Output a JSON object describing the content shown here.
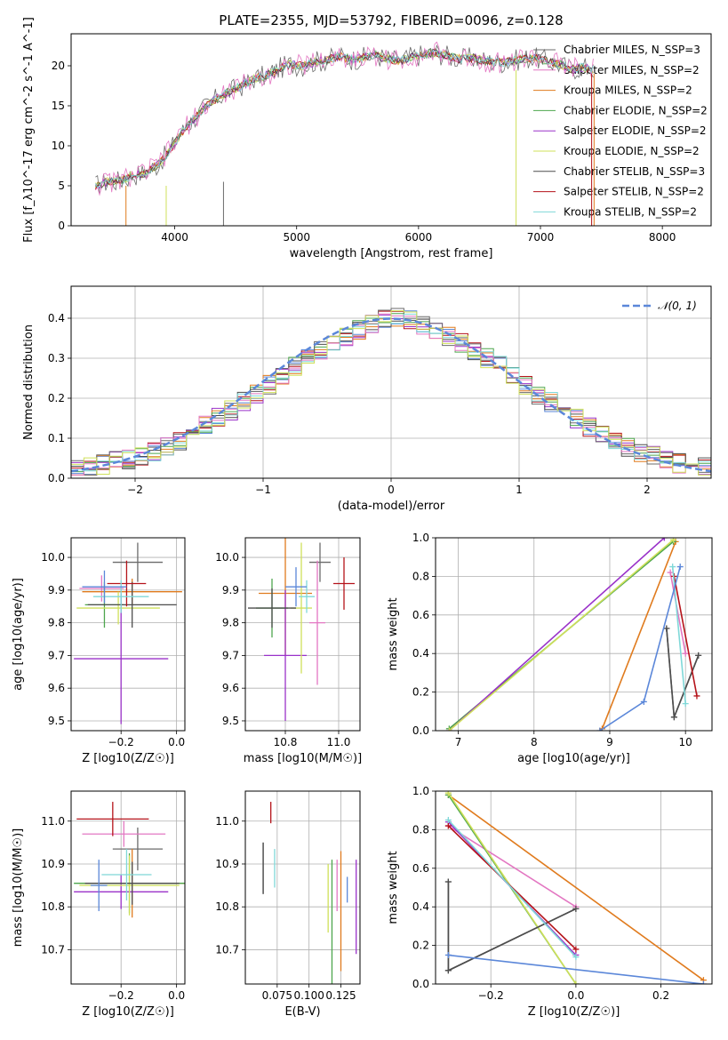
{
  "title": "PLATE=2355, MJD=53792, FIBERID=0096, z=0.128",
  "colors": [
    "#6b6b6b",
    "#e377c2",
    "#e07b1e",
    "#4da64d",
    "#9a32c9",
    "#cfe05a",
    "#4d4d4d",
    "#b5131a",
    "#7fd8d8",
    "#5b87d9"
  ],
  "chart_data": [
    {
      "id": "spectrum",
      "type": "line",
      "xlabel": "wavelength [Angstrom, rest frame]",
      "ylabel": "Flux [f_λ10^-17 erg cm^-2 s^-1 A^-1]",
      "xlim": [
        3150,
        8400
      ],
      "ylim": [
        0,
        24
      ],
      "xticks": [
        "4000",
        "5000",
        "6000",
        "7000",
        "8000"
      ],
      "yticks": [
        "0",
        "5",
        "10",
        "15",
        "20"
      ],
      "grid": false,
      "legend_placement": "right",
      "legend": [
        "Chabrier MILES, N_SSP=3",
        "Salpeter MILES, N_SSP=2",
        "Kroupa MILES, N_SSP=2",
        "Chabrier ELODIE, N_SSP=2",
        "Salpeter ELODIE, N_SSP=2",
        "Kroupa ELODIE, N_SSP=2",
        "Chabrier STELIB, N_SSP=3",
        "Salpeter STELIB, N_SSP=2",
        "Kroupa STELIB, N_SSP=2"
      ],
      "spectrum_x": [
        3350,
        3450,
        3550,
        3650,
        3750,
        3850,
        3950,
        4050,
        4150,
        4250,
        4350,
        4450,
        4550,
        4650,
        4750,
        4850,
        4950,
        5050,
        5150,
        5250,
        5350,
        5450,
        5550,
        5650,
        5750,
        5850,
        5950,
        6050,
        6150,
        6250,
        6350,
        6450,
        6550,
        6650,
        6750,
        6850,
        6950,
        7050,
        7150,
        7250,
        7350,
        7450
      ],
      "spectrum_y": [
        5.0,
        5.5,
        5.6,
        6.3,
        6.6,
        7.5,
        9.2,
        11.5,
        13.3,
        14.8,
        16.0,
        16.8,
        17.5,
        18.4,
        18.8,
        19.6,
        20.2,
        20.0,
        20.5,
        20.7,
        21.2,
        20.8,
        21.0,
        21.3,
        20.8,
        20.6,
        21.2,
        21.4,
        21.6,
        21.2,
        20.8,
        21.0,
        20.6,
        20.4,
        20.5,
        20.9,
        21.0,
        20.6,
        20.2,
        19.6,
        19.8,
        19.6
      ]
    },
    {
      "id": "residual-histogram",
      "type": "bar",
      "xlabel": "(data-model)/error",
      "ylabel": "Normed distribution",
      "xlim": [
        -2.5,
        2.5
      ],
      "ylim": [
        0,
        0.48
      ],
      "xticks": [
        "−2",
        "−1",
        "0",
        "1",
        "2"
      ],
      "yticks": [
        "0.0",
        "0.1",
        "0.2",
        "0.3",
        "0.4"
      ],
      "grid": true,
      "legend_placement": "top-right",
      "legend": [
        "𝒩(0, 1)"
      ],
      "bin_width": 0.1,
      "bins_start": -2.5,
      "hist_values": [
        0.025,
        0.028,
        0.035,
        0.042,
        0.048,
        0.055,
        0.065,
        0.08,
        0.095,
        0.11,
        0.13,
        0.15,
        0.17,
        0.19,
        0.21,
        0.235,
        0.255,
        0.28,
        0.3,
        0.32,
        0.34,
        0.355,
        0.37,
        0.385,
        0.395,
        0.4,
        0.395,
        0.385,
        0.37,
        0.355,
        0.34,
        0.32,
        0.3,
        0.28,
        0.26,
        0.235,
        0.21,
        0.19,
        0.17,
        0.15,
        0.13,
        0.11,
        0.095,
        0.08,
        0.065,
        0.055,
        0.045,
        0.038,
        0.032,
        0.027
      ]
    },
    {
      "id": "age-vs-Z",
      "type": "scatter",
      "xlabel": "Z [log10(Z/Z☉)]",
      "ylabel": "age [log10(age/yr)]",
      "xlim": [
        -0.38,
        0.03
      ],
      "ylim": [
        9.47,
        10.06
      ],
      "xticks": [
        "−0.2",
        "0.0"
      ],
      "yticks": [
        "9.5",
        "9.6",
        "9.7",
        "9.8",
        "9.9",
        "10.0"
      ],
      "points": [
        {
          "x": -0.14,
          "y": 9.985,
          "xerr": 0.09,
          "yerr": 0.06
        },
        {
          "x": -0.27,
          "y": 9.905,
          "xerr": 0.08,
          "yerr": 0.04
        },
        {
          "x": -0.16,
          "y": 9.895,
          "xerr": 0.18,
          "yerr": 0.04
        },
        {
          "x": -0.26,
          "y": 9.855,
          "xerr": 0.07,
          "yerr": 0.07
        },
        {
          "x": -0.2,
          "y": 9.69,
          "xerr": 0.17,
          "yerr": 0.2
        },
        {
          "x": -0.21,
          "y": 9.845,
          "xerr": 0.15,
          "yerr": 0.05
        },
        {
          "x": -0.16,
          "y": 9.855,
          "xerr": 0.16,
          "yerr": 0.07
        },
        {
          "x": -0.18,
          "y": 9.92,
          "xerr": 0.07,
          "yerr": 0.07
        },
        {
          "x": -0.2,
          "y": 9.88,
          "xerr": 0.1,
          "yerr": 0.05
        },
        {
          "x": -0.26,
          "y": 9.91,
          "xerr": 0.08,
          "yerr": 0.05
        }
      ]
    },
    {
      "id": "age-vs-mass",
      "type": "scatter",
      "xlabel": "mass [log10(M/M☉)]",
      "ylabel": "",
      "xlim": [
        10.65,
        11.08
      ],
      "ylim": [
        9.47,
        10.06
      ],
      "xticks": [
        "10.8",
        "11.0"
      ],
      "yticks": [
        "9.5",
        "9.6",
        "9.7",
        "9.8",
        "9.9",
        "10.0"
      ],
      "points": [
        {
          "x": 10.93,
          "y": 9.985,
          "xerr": 0.04,
          "yerr": 0.06
        },
        {
          "x": 10.92,
          "y": 9.8,
          "xerr": 0.03,
          "yerr": 0.19
        },
        {
          "x": 10.8,
          "y": 9.89,
          "xerr": 0.1,
          "yerr": 0.19
        },
        {
          "x": 10.75,
          "y": 9.845,
          "xerr": 0.06,
          "yerr": 0.09
        },
        {
          "x": 10.8,
          "y": 9.7,
          "xerr": 0.08,
          "yerr": 0.2
        },
        {
          "x": 10.86,
          "y": 9.845,
          "xerr": 0.04,
          "yerr": 0.2
        },
        {
          "x": 10.75,
          "y": 9.845,
          "xerr": 0.09,
          "yerr": 0.06
        },
        {
          "x": 11.02,
          "y": 9.92,
          "xerr": 0.04,
          "yerr": 0.08
        },
        {
          "x": 10.88,
          "y": 9.88,
          "xerr": 0.03,
          "yerr": 0.05
        },
        {
          "x": 10.84,
          "y": 9.91,
          "xerr": 0.04,
          "yerr": 0.06
        }
      ]
    },
    {
      "id": "mass-weight-vs-age",
      "type": "line",
      "xlabel": "age [log10(age/yr)]",
      "ylabel": "mass weight",
      "xlim": [
        6.7,
        10.35
      ],
      "ylim": [
        0,
        1.0
      ],
      "xticks": [
        "7",
        "8",
        "9",
        "10"
      ],
      "yticks": [
        "0.0",
        "0.2",
        "0.4",
        "0.6",
        "0.8",
        "1.0"
      ],
      "series": [
        {
          "values": [
            [
              9.75,
              0.53
            ],
            [
              9.85,
              0.07
            ],
            [
              10.17,
              0.39
            ]
          ]
        },
        {
          "values": [
            [
              9.8,
              0.82
            ],
            [
              10.0,
              0.4
            ]
          ]
        },
        {
          "values": [
            [
              8.9,
              0.01
            ],
            [
              9.87,
              0.98
            ]
          ]
        },
        {
          "values": [
            [
              6.88,
              0.01
            ],
            [
              9.84,
              0.98
            ]
          ]
        },
        {
          "values": [
            [
              6.88,
              0.0
            ],
            [
              9.72,
              1.0
            ]
          ]
        },
        {
          "values": [
            [
              6.88,
              0.0
            ],
            [
              9.84,
              0.99
            ]
          ]
        },
        {
          "values": [
            [
              9.75,
              0.53
            ],
            [
              9.85,
              0.07
            ],
            [
              10.17,
              0.39
            ]
          ]
        },
        {
          "values": [
            [
              9.85,
              0.8
            ],
            [
              10.15,
              0.18
            ]
          ]
        },
        {
          "values": [
            [
              9.83,
              0.85
            ],
            [
              10.0,
              0.14
            ]
          ]
        },
        {
          "values": [
            [
              8.87,
              0.0
            ],
            [
              9.45,
              0.15
            ],
            [
              9.93,
              0.85
            ]
          ]
        }
      ]
    },
    {
      "id": "mass-vs-Z",
      "type": "scatter",
      "xlabel": "Z [log10(Z/Z☉)]",
      "ylabel": "mass [log10(M/M☉)]",
      "xlim": [
        -0.38,
        0.03
      ],
      "ylim": [
        10.62,
        11.07
      ],
      "xticks": [
        "−0.2",
        "0.0"
      ],
      "yticks": [
        "10.7",
        "10.8",
        "10.9",
        "11.0"
      ],
      "points": [
        {
          "x": -0.14,
          "y": 10.935,
          "xerr": 0.09,
          "yerr": 0.05
        },
        {
          "x": -0.19,
          "y": 10.97,
          "xerr": 0.15,
          "yerr": 0.03
        },
        {
          "x": -0.16,
          "y": 10.855,
          "xerr": 0.19,
          "yerr": 0.08
        },
        {
          "x": -0.17,
          "y": 10.855,
          "xerr": 0.2,
          "yerr": 0.07
        },
        {
          "x": -0.2,
          "y": 10.835,
          "xerr": 0.17,
          "yerr": 0.04
        },
        {
          "x": -0.17,
          "y": 10.85,
          "xerr": 0.18,
          "yerr": 0.07
        },
        {
          "x": -0.16,
          "y": 10.855,
          "xerr": 0.17,
          "yerr": 0.05
        },
        {
          "x": -0.23,
          "y": 11.005,
          "xerr": 0.13,
          "yerr": 0.04
        },
        {
          "x": -0.18,
          "y": 10.875,
          "xerr": 0.09,
          "yerr": 0.06
        },
        {
          "x": -0.28,
          "y": 10.85,
          "xerr": 0.03,
          "yerr": 0.06
        }
      ]
    },
    {
      "id": "mass-vs-ebv",
      "type": "scatter",
      "xlabel": "E(B-V)",
      "ylabel": "",
      "xlim": [
        0.05,
        0.14
      ],
      "ylim": [
        10.62,
        11.07
      ],
      "xticks": [
        "0.075",
        "0.100",
        "0.125"
      ],
      "yticks": [
        "10.7",
        "10.8",
        "10.9",
        "11.0"
      ],
      "points": [
        {
          "x": 0.064,
          "y": 10.89,
          "yerr": 0.06
        },
        {
          "x": 0.122,
          "y": 10.85,
          "yerr": 0.06
        },
        {
          "x": 0.125,
          "y": 10.79,
          "yerr": 0.14
        },
        {
          "x": 0.118,
          "y": 10.75,
          "yerr": 0.16
        },
        {
          "x": 0.137,
          "y": 10.8,
          "yerr": 0.11
        },
        {
          "x": 0.115,
          "y": 10.82,
          "yerr": 0.08
        },
        {
          "x": 0.064,
          "y": 10.89,
          "yerr": 0.06
        },
        {
          "x": 0.07,
          "y": 11.02,
          "yerr": 0.025
        },
        {
          "x": 0.073,
          "y": 10.89,
          "yerr": 0.045
        },
        {
          "x": 0.13,
          "y": 10.84,
          "yerr": 0.03
        }
      ]
    },
    {
      "id": "mass-weight-vs-Z",
      "type": "line",
      "xlabel": "Z [log10(Z/Z☉)]",
      "ylabel": "mass weight",
      "xlim": [
        -0.33,
        0.32
      ],
      "ylim": [
        0,
        1.0
      ],
      "xticks": [
        "−0.2",
        "0.0",
        "0.2"
      ],
      "yticks": [
        "0.0",
        "0.2",
        "0.4",
        "0.6",
        "0.8",
        "1.0"
      ],
      "series": [
        {
          "values": [
            [
              -0.3,
              0.53
            ],
            [
              -0.3,
              0.07
            ],
            [
              0.0,
              0.39
            ]
          ]
        },
        {
          "values": [
            [
              -0.3,
              0.82
            ],
            [
              0.0,
              0.4
            ]
          ]
        },
        {
          "values": [
            [
              -0.3,
              0.98
            ],
            [
              0.3,
              0.02
            ]
          ]
        },
        {
          "values": [
            [
              -0.3,
              0.98
            ],
            [
              0.0,
              0.0
            ]
          ]
        },
        {
          "values": [
            [
              -0.3,
              0.84
            ],
            [
              0.0,
              0.15
            ]
          ]
        },
        {
          "values": [
            [
              -0.3,
              0.99
            ],
            [
              0.0,
              0.0
            ]
          ]
        },
        {
          "values": [
            [
              -0.3,
              0.53
            ],
            [
              -0.3,
              0.07
            ],
            [
              0.0,
              0.39
            ]
          ]
        },
        {
          "values": [
            [
              -0.3,
              0.82
            ],
            [
              0.0,
              0.18
            ]
          ]
        },
        {
          "values": [
            [
              -0.3,
              0.85
            ],
            [
              0.0,
              0.14
            ]
          ]
        },
        {
          "values": [
            [
              -0.3,
              0.15
            ],
            [
              0.3,
              0.0
            ]
          ]
        }
      ]
    }
  ]
}
